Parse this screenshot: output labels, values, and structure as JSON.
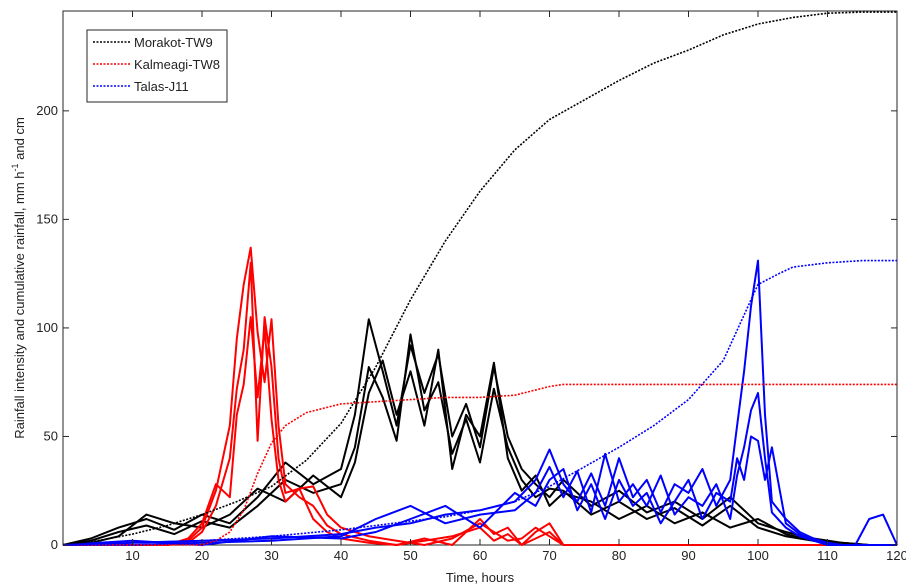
{
  "chart_data": {
    "type": "line",
    "xlabel": "Time, hours",
    "ylabel": "Rainfall intensity and cumulative rainfall, mm h",
    "ylabel_sup": "-1",
    "ylabel_tail": " and cm",
    "xlim": [
      0,
      120
    ],
    "ylim": [
      0,
      246
    ],
    "x_ticks": [
      10,
      20,
      30,
      40,
      50,
      60,
      70,
      80,
      90,
      100,
      110,
      120
    ],
    "y_ticks": [
      0,
      50,
      100,
      150,
      200
    ],
    "grid": false,
    "legend_position": "top-left",
    "colors": {
      "Morakot-TW9": "#000000",
      "Kalmeagi-TW8": "#ff0000",
      "Talas-J11": "#0000ff"
    },
    "legend": [
      "Morakot-TW9",
      "Kalmeagi-TW8",
      "Talas-J11"
    ],
    "cumulative": [
      {
        "name": "Morakot-TW9",
        "x": [
          0,
          5,
          10,
          15,
          20,
          25,
          30,
          35,
          40,
          45,
          50,
          55,
          60,
          65,
          70,
          75,
          80,
          85,
          90,
          95,
          100,
          105,
          110,
          115,
          120
        ],
        "values": [
          0,
          2,
          5,
          9,
          14,
          20,
          27,
          39,
          56,
          82,
          113,
          140,
          163,
          182,
          196,
          205,
          214,
          222,
          228,
          235,
          240,
          243,
          245,
          245.5,
          245.5
        ]
      },
      {
        "name": "Kalmeagi-TW8",
        "x": [
          0,
          5,
          10,
          15,
          20,
          22,
          24,
          26,
          28,
          30,
          32,
          35,
          40,
          45,
          50,
          55,
          60,
          65,
          70,
          72,
          80,
          90,
          100,
          110,
          120
        ],
        "values": [
          0,
          0,
          0,
          0,
          0,
          2,
          6,
          16,
          33,
          47,
          55,
          61,
          65,
          66,
          67,
          68,
          68,
          69,
          73,
          74,
          74,
          74,
          74,
          74,
          74
        ]
      },
      {
        "name": "Talas-J11",
        "x": [
          0,
          5,
          10,
          15,
          20,
          25,
          30,
          35,
          40,
          45,
          50,
          55,
          60,
          65,
          70,
          75,
          80,
          85,
          90,
          95,
          100,
          103,
          105,
          110,
          115,
          120
        ],
        "values": [
          0,
          0.5,
          1,
          1.5,
          2,
          3,
          4,
          5.5,
          7,
          9,
          11,
          13,
          16,
          20,
          27,
          36,
          45,
          55,
          67,
          85,
          120,
          125,
          128,
          130,
          131,
          131
        ]
      }
    ],
    "intensity": [
      {
        "name": "Morakot-TW9",
        "x": [
          0,
          4,
          8,
          12,
          16,
          20,
          24,
          28,
          32,
          36,
          40,
          42,
          44,
          46,
          48,
          50,
          52,
          54,
          56,
          58,
          60,
          62,
          64,
          66,
          68,
          70,
          72,
          76,
          80,
          84,
          88,
          92,
          96,
          100,
          104,
          108,
          112,
          116,
          120
        ],
        "values": [
          0,
          3,
          8,
          12,
          7,
          14,
          10,
          22,
          38,
          28,
          35,
          60,
          104,
          80,
          55,
          92,
          70,
          88,
          50,
          65,
          45,
          82,
          50,
          35,
          28,
          22,
          30,
          18,
          25,
          15,
          20,
          12,
          22,
          10,
          6,
          3,
          1,
          0,
          0
        ]
      },
      {
        "name": "Morakot-TW9",
        "x": [
          0,
          4,
          8,
          12,
          16,
          20,
          24,
          28,
          32,
          36,
          40,
          42,
          44,
          46,
          48,
          50,
          52,
          54,
          56,
          58,
          60,
          62,
          64,
          66,
          68,
          70,
          72,
          76,
          80,
          84,
          88,
          92,
          96,
          100,
          104,
          108,
          112,
          116,
          120
        ],
        "values": [
          0,
          2,
          6,
          9,
          5,
          11,
          8,
          18,
          30,
          24,
          28,
          45,
          82,
          68,
          48,
          97,
          62,
          75,
          42,
          58,
          38,
          72,
          45,
          30,
          22,
          26,
          25,
          14,
          20,
          12,
          17,
          9,
          18,
          8,
          4,
          2,
          1,
          0,
          0
        ]
      },
      {
        "name": "Morakot-TW9",
        "x": [
          0,
          4,
          8,
          12,
          16,
          20,
          24,
          28,
          32,
          36,
          40,
          42,
          44,
          46,
          48,
          50,
          52,
          54,
          56,
          58,
          60,
          62,
          64,
          66,
          68,
          70,
          72,
          76,
          80,
          84,
          88,
          92,
          96,
          100,
          104,
          108,
          112,
          116,
          120
        ],
        "values": [
          0,
          1,
          4,
          14,
          10,
          8,
          14,
          26,
          20,
          32,
          22,
          38,
          70,
          85,
          60,
          80,
          55,
          90,
          35,
          60,
          50,
          84,
          40,
          25,
          32,
          18,
          24,
          20,
          12,
          18,
          10,
          15,
          8,
          12,
          5,
          2,
          0,
          0,
          0
        ]
      },
      {
        "name": "Kalmeagi-TW8",
        "x": [
          0,
          15,
          18,
          20,
          22,
          24,
          25,
          26,
          27,
          28,
          29,
          30,
          31,
          32,
          34,
          36,
          38,
          40,
          44,
          48,
          52,
          56,
          60,
          62,
          64,
          66,
          68,
          70,
          72,
          80,
          120
        ],
        "values": [
          0,
          0,
          2,
          8,
          25,
          55,
          95,
          120,
          137,
          98,
          75,
          104,
          55,
          28,
          22,
          18,
          9,
          5,
          2,
          0,
          3,
          0,
          12,
          5,
          8,
          0,
          6,
          10,
          0,
          0,
          0
        ]
      },
      {
        "name": "Kalmeagi-TW8",
        "x": [
          0,
          15,
          18,
          20,
          22,
          24,
          25,
          26,
          27,
          28,
          29,
          30,
          31,
          32,
          34,
          36,
          38,
          40,
          44,
          48,
          52,
          56,
          60,
          62,
          64,
          66,
          68,
          70,
          72,
          80,
          120
        ],
        "values": [
          0,
          0,
          1,
          6,
          18,
          40,
          72,
          90,
          130,
          48,
          105,
          82,
          40,
          24,
          26,
          12,
          6,
          3,
          1,
          0,
          2,
          4,
          8,
          2,
          5,
          0,
          3,
          6,
          0,
          0,
          0
        ]
      },
      {
        "name": "Kalmeagi-TW8",
        "x": [
          0,
          15,
          18,
          20,
          22,
          24,
          25,
          26,
          27,
          28,
          29,
          30,
          31,
          32,
          34,
          36,
          38,
          40,
          44,
          48,
          52,
          56,
          60,
          62,
          64,
          66,
          68,
          70,
          72,
          80,
          120
        ],
        "values": [
          0,
          0,
          3,
          10,
          28,
          22,
          60,
          74,
          105,
          68,
          100,
          58,
          30,
          20,
          26,
          27,
          14,
          8,
          4,
          2,
          0,
          3,
          10,
          6,
          2,
          3,
          8,
          4,
          0,
          0,
          0
        ]
      },
      {
        "name": "Talas-J11",
        "x": [
          0,
          10,
          20,
          30,
          40,
          45,
          50,
          55,
          60,
          65,
          68,
          70,
          72,
          74,
          76,
          78,
          80,
          82,
          84,
          86,
          88,
          90,
          92,
          94,
          96,
          97,
          98,
          99,
          100,
          101,
          102,
          104,
          106,
          108,
          110,
          112,
          114,
          116,
          118,
          120
        ],
        "values": [
          0,
          1,
          2,
          3,
          5,
          8,
          10,
          14,
          16,
          20,
          30,
          44,
          28,
          20,
          33,
          18,
          40,
          22,
          30,
          15,
          28,
          24,
          35,
          18,
          30,
          55,
          80,
          110,
          131,
          60,
          20,
          12,
          6,
          3,
          1,
          0,
          0,
          12,
          14,
          0
        ]
      },
      {
        "name": "Talas-J11",
        "x": [
          0,
          10,
          20,
          30,
          40,
          45,
          50,
          55,
          60,
          65,
          68,
          70,
          72,
          74,
          76,
          78,
          80,
          82,
          84,
          86,
          88,
          90,
          92,
          94,
          96,
          97,
          98,
          99,
          100,
          101,
          102,
          104,
          106,
          108,
          110,
          112,
          114,
          116,
          118,
          120
        ],
        "values": [
          0,
          0,
          1,
          2,
          4,
          12,
          18,
          10,
          14,
          16,
          24,
          36,
          22,
          34,
          15,
          42,
          20,
          28,
          18,
          32,
          14,
          22,
          18,
          28,
          12,
          32,
          45,
          62,
          70,
          40,
          15,
          8,
          4,
          2,
          0,
          0,
          0,
          0,
          0,
          0
        ]
      },
      {
        "name": "Talas-J11",
        "x": [
          0,
          10,
          20,
          30,
          40,
          45,
          50,
          55,
          60,
          65,
          68,
          70,
          72,
          74,
          76,
          78,
          80,
          82,
          84,
          86,
          88,
          90,
          92,
          94,
          96,
          97,
          98,
          99,
          100,
          101,
          102,
          104,
          106,
          108,
          110,
          112,
          114,
          116,
          118,
          120
        ],
        "values": [
          0,
          2,
          0,
          4,
          3,
          6,
          12,
          18,
          8,
          24,
          18,
          30,
          35,
          16,
          28,
          12,
          30,
          18,
          24,
          10,
          20,
          30,
          12,
          24,
          20,
          40,
          30,
          50,
          48,
          30,
          45,
          10,
          5,
          2,
          1,
          0,
          0,
          0,
          0,
          0
        ]
      }
    ]
  }
}
